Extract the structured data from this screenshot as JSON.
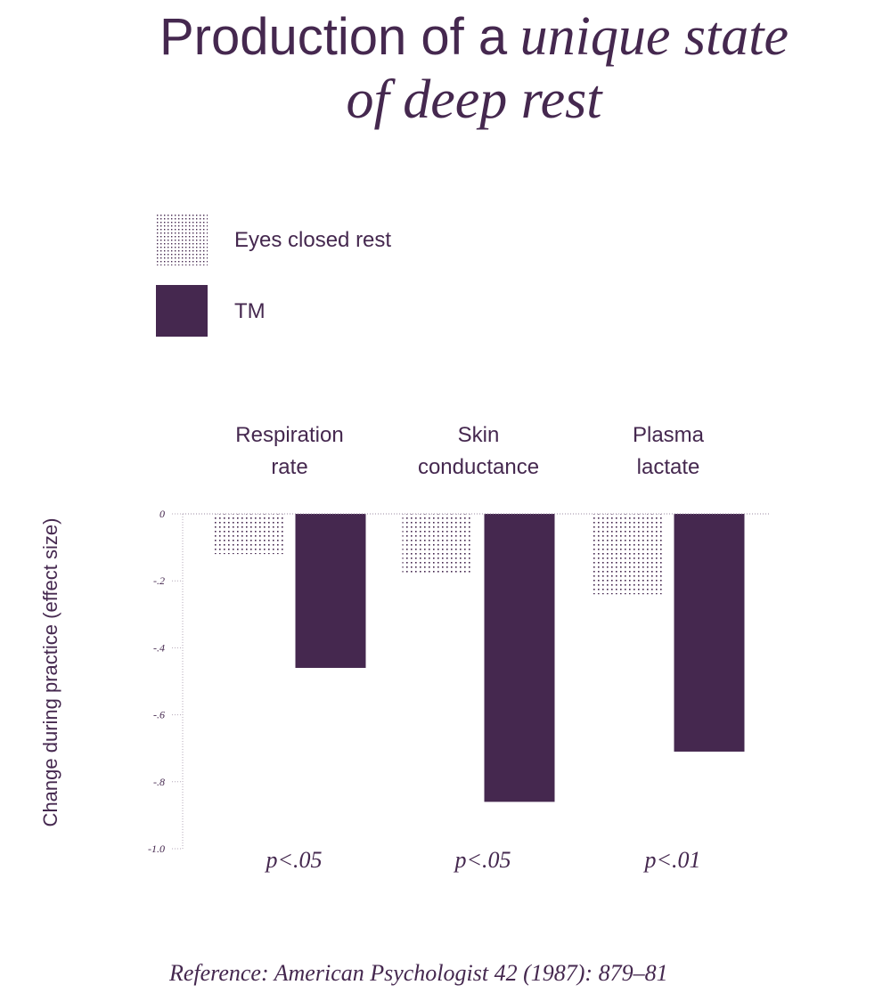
{
  "title": {
    "plain": "Production of a",
    "italic_line1": "unique state",
    "italic_line2": "of deep rest"
  },
  "legend": [
    {
      "label": "Eyes closed rest",
      "pattern": "dots"
    },
    {
      "label": "TM",
      "pattern": "solid"
    }
  ],
  "colors": {
    "primary": "#45284f",
    "dots": "#45284f",
    "baseline": "#9a8aa0"
  },
  "chart_data": {
    "type": "bar",
    "categories": [
      {
        "line1": "Respiration",
        "line2": "rate"
      },
      {
        "line1": "Skin",
        "line2": "conductance"
      },
      {
        "line1": "Plasma",
        "line2": "lactate"
      }
    ],
    "series": [
      {
        "name": "Eyes closed rest",
        "values": [
          -0.12,
          -0.18,
          -0.24
        ]
      },
      {
        "name": "TM",
        "values": [
          -0.46,
          -0.86,
          -0.71
        ]
      }
    ],
    "significance": [
      {
        "p": "p",
        "rest": "<.05"
      },
      {
        "p": "p",
        "rest": "<.05"
      },
      {
        "p": "p",
        "rest": "<.01"
      }
    ],
    "yticks": [
      {
        "value": 0,
        "label": "0"
      },
      {
        "value": -0.2,
        "label": "-.2"
      },
      {
        "value": -0.4,
        "label": "-.4"
      },
      {
        "value": -0.6,
        "label": "-.6"
      },
      {
        "value": -0.8,
        "label": "-.8"
      },
      {
        "value": -1.0,
        "label": "-1.0"
      }
    ],
    "ylim": [
      -1.0,
      0
    ],
    "ylabel": "Change during practice (effect size)"
  },
  "reference": "Reference: American Psychologist 42 (1987): 879–81"
}
